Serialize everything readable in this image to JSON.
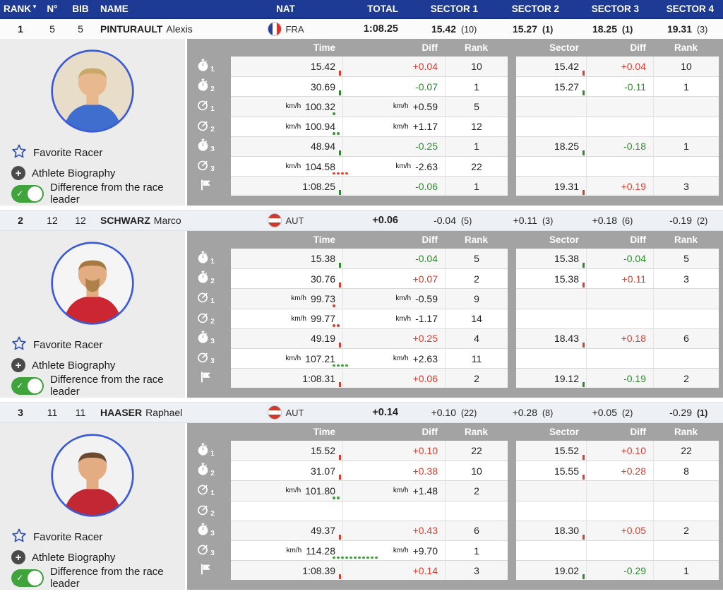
{
  "header": {
    "columns": [
      "RANK",
      "N°",
      "BIB",
      "NAME",
      "NAT",
      "TOTAL",
      "SECTOR 1",
      "SECTOR 2",
      "SECTOR 3",
      "SECTOR 4"
    ],
    "sort_indicator": "▼"
  },
  "detail_header": {
    "time": "Time",
    "diff": "Diff",
    "rank": "Rank",
    "sector": "Sector",
    "sdiff": "Diff",
    "srank": "Rank"
  },
  "options": {
    "favorite": "Favorite Racer",
    "biography": "Athlete Biography",
    "diff_toggle": "Difference from the race leader",
    "toggle_check": "✓"
  },
  "colors": {
    "header_blue": "#1d3b94",
    "header_blue_dark": "#15307c",
    "panel_gray": "#a3a3a3",
    "diff_red": "#df3b2d",
    "diff_green": "#2e8b2d",
    "toggle_green": "#3fa43c",
    "star_blue": "#2d4db5",
    "photo_ring_blue": "#3b5bd6",
    "summary_alt_bg": "#edf0f5",
    "row_alt_bg": "#f6f6f6"
  },
  "racers": [
    {
      "rank": "1",
      "n": "5",
      "bib": "5",
      "last": "PINTURAULT",
      "first": "Alexis",
      "nat": "FRA",
      "flag": "fra",
      "total": "1:08.25",
      "sectors": [
        {
          "value": "15.42",
          "rank": "(10)",
          "bold": false
        },
        {
          "value": "15.27",
          "rank": "(1)",
          "bold": true
        },
        {
          "value": "18.25",
          "rank": "(1)",
          "bold": true
        },
        {
          "value": "19.31",
          "rank": "(3)",
          "bold": false
        }
      ],
      "avatar": {
        "bg": "#e8ddc8",
        "skin": "#e8b98f",
        "hair": "#c9a86a",
        "jacket": "#3f6fce",
        "beard": false
      },
      "rows": [
        {
          "icon": "stopwatch",
          "sub": "1",
          "time": "15.42",
          "diff": "+0.04",
          "diff_color": "red",
          "rank": "10",
          "tick": "red",
          "sector": "15.42",
          "s_diff": "+0.04",
          "s_diff_color": "red",
          "s_rank": "10",
          "s_tick": "red"
        },
        {
          "icon": "stopwatch",
          "sub": "2",
          "time": "30.69",
          "diff": "-0.07",
          "diff_color": "green",
          "rank": "1",
          "tick": "green",
          "sector": "15.27",
          "s_diff": "-0.11",
          "s_diff_color": "green",
          "s_rank": "1",
          "s_tick": "green"
        },
        {
          "icon": "speed",
          "sub": "1",
          "time_unit": "km/h",
          "time": "100.32",
          "diff_unit": "km/h",
          "diff": "+0.59",
          "rank": "5",
          "dots": {
            "n": 1,
            "color": "green"
          }
        },
        {
          "icon": "speed",
          "sub": "2",
          "time_unit": "km/h",
          "time": "100.94",
          "diff_unit": "km/h",
          "diff": "+1.17",
          "rank": "12",
          "dots": {
            "n": 2,
            "color": "green"
          }
        },
        {
          "icon": "stopwatch",
          "sub": "3",
          "time": "48.94",
          "diff": "-0.25",
          "diff_color": "green",
          "rank": "1",
          "tick": "green",
          "sector": "18.25",
          "s_diff": "-0.18",
          "s_diff_color": "green",
          "s_rank": "1",
          "s_tick": "green"
        },
        {
          "icon": "speed",
          "sub": "3",
          "time_unit": "km/h",
          "time": "104.58",
          "diff_unit": "km/h",
          "diff": "-2.63",
          "rank": "22",
          "dots": {
            "n": 4,
            "color": "red"
          }
        },
        {
          "icon": "flag",
          "sub": "",
          "time": "1:08.25",
          "diff": "-0.06",
          "diff_color": "green",
          "rank": "1",
          "tick": "green",
          "sector": "19.31",
          "s_diff": "+0.19",
          "s_diff_color": "red",
          "s_rank": "3",
          "s_tick": "red"
        }
      ]
    },
    {
      "rank": "2",
      "n": "12",
      "bib": "12",
      "last": "SCHWARZ",
      "first": "Marco",
      "nat": "AUT",
      "flag": "aut",
      "total": "+0.06",
      "sectors": [
        {
          "value": "-0.04",
          "rank": "(5)",
          "bold": false
        },
        {
          "value": "+0.11",
          "rank": "(3)",
          "bold": false
        },
        {
          "value": "+0.18",
          "rank": "(6)",
          "bold": false
        },
        {
          "value": "-0.19",
          "rank": "(2)",
          "bold": false
        }
      ],
      "avatar": {
        "bg": "#f5f5f5",
        "skin": "#e3ac82",
        "hair": "#a5793f",
        "jacket": "#cc2633",
        "beard": true
      },
      "rows": [
        {
          "icon": "stopwatch",
          "sub": "1",
          "time": "15.38",
          "diff": "-0.04",
          "diff_color": "green",
          "rank": "5",
          "tick": "green",
          "sector": "15.38",
          "s_diff": "-0.04",
          "s_diff_color": "green",
          "s_rank": "5",
          "s_tick": "green"
        },
        {
          "icon": "stopwatch",
          "sub": "2",
          "time": "30.76",
          "diff": "+0.07",
          "diff_color": "red",
          "rank": "2",
          "tick": "red",
          "sector": "15.38",
          "s_diff": "+0.11",
          "s_diff_color": "red",
          "s_rank": "3",
          "s_tick": "red"
        },
        {
          "icon": "speed",
          "sub": "1",
          "time_unit": "km/h",
          "time": "99.73",
          "diff_unit": "km/h",
          "diff": "-0.59",
          "rank": "9",
          "dots": {
            "n": 1,
            "color": "red"
          }
        },
        {
          "icon": "speed",
          "sub": "2",
          "time_unit": "km/h",
          "time": "99.77",
          "diff_unit": "km/h",
          "diff": "-1.17",
          "rank": "14",
          "dots": {
            "n": 2,
            "color": "red"
          }
        },
        {
          "icon": "stopwatch",
          "sub": "3",
          "time": "49.19",
          "diff": "+0.25",
          "diff_color": "red",
          "rank": "4",
          "tick": "red",
          "sector": "18.43",
          "s_diff": "+0.18",
          "s_diff_color": "red",
          "s_rank": "6",
          "s_tick": "red"
        },
        {
          "icon": "speed",
          "sub": "3",
          "time_unit": "km/h",
          "time": "107.21",
          "diff_unit": "km/h",
          "diff": "+2.63",
          "rank": "11",
          "dots": {
            "n": 4,
            "color": "green"
          }
        },
        {
          "icon": "flag",
          "sub": "",
          "time": "1:08.31",
          "diff": "+0.06",
          "diff_color": "red",
          "rank": "2",
          "tick": "red",
          "sector": "19.12",
          "s_diff": "-0.19",
          "s_diff_color": "green",
          "s_rank": "2",
          "s_tick": "green"
        }
      ]
    },
    {
      "rank": "3",
      "n": "11",
      "bib": "11",
      "last": "HAASER",
      "first": "Raphael",
      "nat": "AUT",
      "flag": "aut",
      "total": "+0.14",
      "sectors": [
        {
          "value": "+0.10",
          "rank": "(22)",
          "bold": false
        },
        {
          "value": "+0.28",
          "rank": "(8)",
          "bold": false
        },
        {
          "value": "+0.05",
          "rank": "(2)",
          "bold": false
        },
        {
          "value": "-0.29",
          "rank": "(1)",
          "bold": true
        }
      ],
      "avatar": {
        "bg": "#f2f2f2",
        "skin": "#e3ac82",
        "hair": "#6b4a2f",
        "jacket": "#c22833",
        "beard": false
      },
      "rows": [
        {
          "icon": "stopwatch",
          "sub": "1",
          "time": "15.52",
          "diff": "+0.10",
          "diff_color": "red",
          "rank": "22",
          "tick": "red",
          "sector": "15.52",
          "s_diff": "+0.10",
          "s_diff_color": "red",
          "s_rank": "22",
          "s_tick": "red"
        },
        {
          "icon": "stopwatch",
          "sub": "2",
          "time": "31.07",
          "diff": "+0.38",
          "diff_color": "red",
          "rank": "10",
          "tick": "red",
          "sector": "15.55",
          "s_diff": "+0.28",
          "s_diff_color": "red",
          "s_rank": "8",
          "s_tick": "red"
        },
        {
          "icon": "speed",
          "sub": "1",
          "time_unit": "km/h",
          "time": "101.80",
          "diff_unit": "km/h",
          "diff": "+1.48",
          "rank": "2",
          "dots": {
            "n": 2,
            "color": "green"
          }
        },
        {
          "icon": "speed",
          "sub": "2"
        },
        {
          "icon": "stopwatch",
          "sub": "3",
          "time": "49.37",
          "diff": "+0.43",
          "diff_color": "red",
          "rank": "6",
          "tick": "red",
          "sector": "18.30",
          "s_diff": "+0.05",
          "s_diff_color": "red",
          "s_rank": "2",
          "s_tick": "red"
        },
        {
          "icon": "speed",
          "sub": "3",
          "time_unit": "km/h",
          "time": "114.28",
          "diff_unit": "km/h",
          "diff": "+9.70",
          "rank": "1",
          "dots": {
            "n": 11,
            "color": "green"
          }
        },
        {
          "icon": "flag",
          "sub": "",
          "time": "1:08.39",
          "diff": "+0.14",
          "diff_color": "red",
          "rank": "3",
          "tick": "red",
          "sector": "19.02",
          "s_diff": "-0.29",
          "s_diff_color": "green",
          "s_rank": "1",
          "s_tick": "green"
        }
      ]
    }
  ]
}
